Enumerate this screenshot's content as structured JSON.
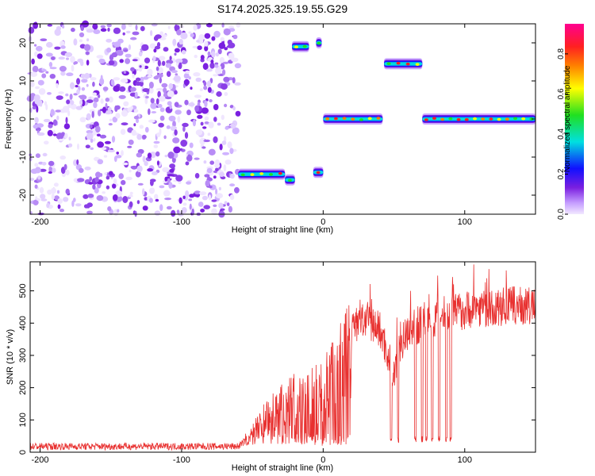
{
  "figure": {
    "title": "S174.2025.325.19.55.G29"
  },
  "chart_data": [
    {
      "type": "heatmap",
      "xlabel": "Height of straight line (km)",
      "ylabel": "Frequency (Hz)",
      "xlim": [
        -207,
        150
      ],
      "ylim": [
        -25,
        25
      ],
      "xticks": [
        -200,
        -100,
        0,
        100
      ],
      "yticks": [
        -20,
        -10,
        0,
        10,
        20
      ],
      "noise_region": [
        -207,
        -60
      ],
      "signal_segments": [
        {
          "x": [
            -60,
            -27
          ],
          "freq": -14.5
        },
        {
          "x": [
            -27,
            -20
          ],
          "freq": -16
        },
        {
          "x": [
            -22,
            -10
          ],
          "freq": 19
        },
        {
          "x": [
            -5,
            -1
          ],
          "freq": 20
        },
        {
          "x": [
            -7,
            0
          ],
          "freq": -14
        },
        {
          "x": [
            0,
            42
          ],
          "freq": 0
        },
        {
          "x": [
            43,
            70
          ],
          "freq": 14.5
        },
        {
          "x": [
            70,
            150
          ],
          "freq": 0
        }
      ],
      "colorbar": {
        "label": "Normalized spectral amplitude",
        "range": [
          0,
          0.95
        ],
        "ticks": [
          0.0,
          0.2,
          0.4,
          0.6,
          0.8
        ],
        "tick_labels": [
          "0.0",
          "0.2",
          "0.4",
          "0.6",
          "0.8"
        ],
        "colormap": "rainbow: white-lavender, purple, blue, cyan, green, yellow, orange, red, magenta"
      },
      "colors": {
        "low": "#e6d6ff",
        "mid_low": "#7a1fe0",
        "blue": "#1010ff",
        "cyan": "#00e0e0",
        "green": "#20e020",
        "yellow": "#ffff00",
        "red": "#ff2020",
        "magenta": "#ff00a0"
      }
    },
    {
      "type": "line",
      "xlabel": "Height of straight line (km)",
      "ylabel": "SNR (10 * v/v)",
      "xlim": [
        -207,
        150
      ],
      "ylim": [
        0,
        590
      ],
      "xticks": [
        -200,
        -100,
        0,
        100
      ],
      "yticks": [
        0,
        100,
        200,
        300,
        400,
        500
      ],
      "series_color": "#e8302f",
      "envelope": {
        "x": [
          -207,
          -60,
          -55,
          -40,
          -20,
          0,
          10,
          20,
          30,
          40,
          46,
          50,
          55,
          60,
          70,
          80,
          90,
          100,
          110,
          120,
          130,
          150
        ],
        "y": [
          18,
          18,
          35,
          130,
          190,
          230,
          300,
          390,
          410,
          380,
          300,
          240,
          330,
          380,
          400,
          420,
          430,
          440,
          450,
          440,
          455,
          450
        ]
      },
      "dropouts_x": [
        48,
        53,
        65,
        70,
        73,
        77,
        82,
        87,
        90
      ]
    }
  ]
}
